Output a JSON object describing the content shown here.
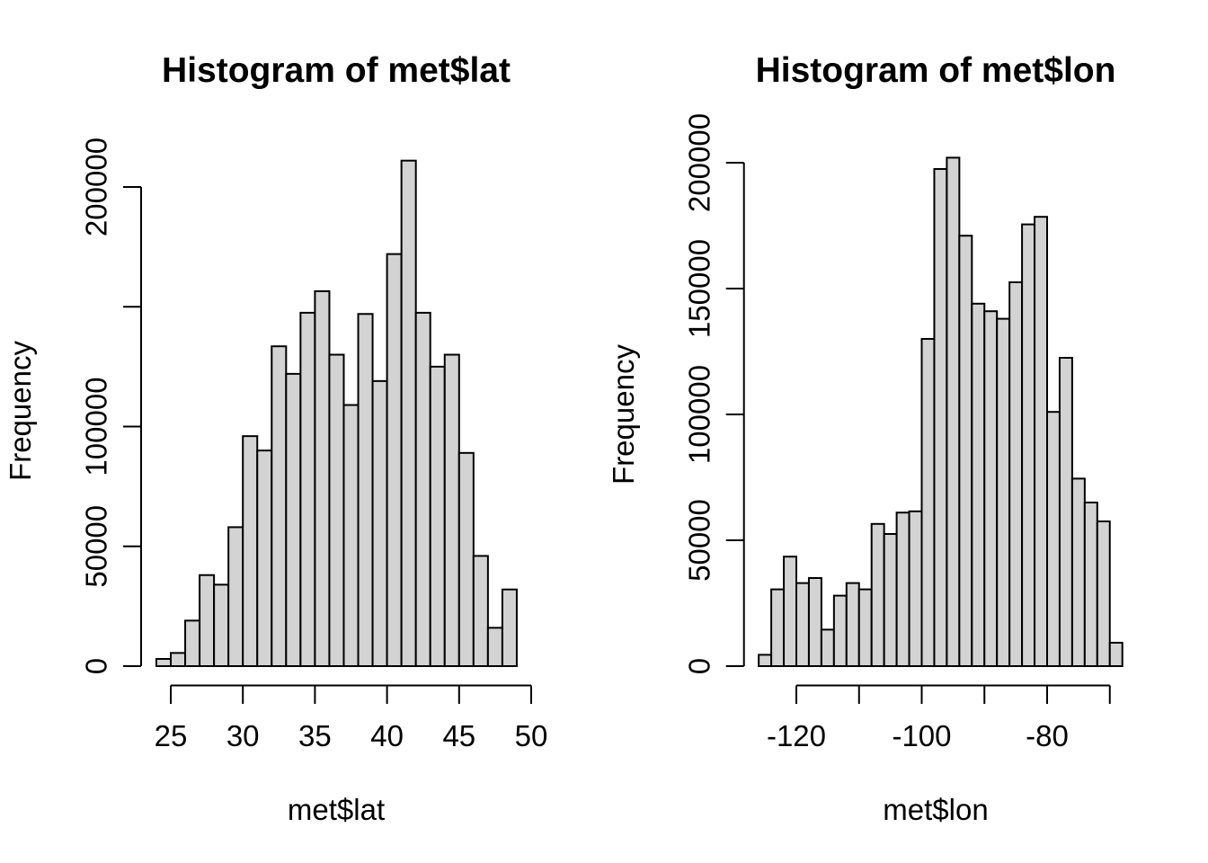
{
  "figure": {
    "background": "#ffffff",
    "bar_fill": "#d3d3d3",
    "bar_stroke": "#000000",
    "text_color": "#000000"
  },
  "chart_data": [
    {
      "type": "bar",
      "title": "Histogram of met$lat",
      "xlabel": "met$lat",
      "ylabel": "Frequency",
      "grid": false,
      "legend": "none",
      "xlim": [
        24,
        50
      ],
      "ylim": [
        0,
        211000
      ],
      "bin_start": 24,
      "bin_width": 1,
      "counts": [
        3000,
        5500,
        19000,
        38000,
        34000,
        58000,
        96000,
        90000,
        133500,
        122000,
        147500,
        156500,
        130000,
        109000,
        147000,
        119000,
        172000,
        211000,
        147500,
        125000,
        130000,
        89000,
        46000,
        16000,
        32000
      ],
      "x_ticks": [
        {
          "value": 25,
          "label": "25"
        },
        {
          "value": 30,
          "label": "30"
        },
        {
          "value": 35,
          "label": "35"
        },
        {
          "value": 40,
          "label": "40"
        },
        {
          "value": 45,
          "label": "45"
        },
        {
          "value": 50,
          "label": "50"
        }
      ],
      "y_ticks": [
        {
          "value": 0,
          "label": "0"
        },
        {
          "value": 50000,
          "label": "50000"
        },
        {
          "value": 100000,
          "label": "100000"
        },
        {
          "value": 150000,
          "label": ""
        },
        {
          "value": 200000,
          "label": "200000"
        }
      ]
    },
    {
      "type": "bar",
      "title": "Histogram of met$lon",
      "xlabel": "met$lon",
      "ylabel": "Frequency",
      "grid": false,
      "legend": "none",
      "xlim": [
        -126,
        -68
      ],
      "ylim": [
        0,
        202000
      ],
      "bin_start": -126,
      "bin_width": 2,
      "counts": [
        4500,
        30500,
        43500,
        33000,
        35000,
        14500,
        28000,
        33000,
        30500,
        56500,
        52500,
        61000,
        61500,
        130000,
        197500,
        202000,
        171000,
        144000,
        141000,
        138000,
        152500,
        175500,
        178500,
        101000,
        122500,
        74500,
        65000,
        57500,
        9300
      ],
      "x_ticks": [
        {
          "value": -120,
          "label": "-120"
        },
        {
          "value": -110,
          "label": ""
        },
        {
          "value": -100,
          "label": "-100"
        },
        {
          "value": -90,
          "label": ""
        },
        {
          "value": -80,
          "label": "-80"
        },
        {
          "value": -70,
          "label": ""
        }
      ],
      "y_ticks": [
        {
          "value": 0,
          "label": "0"
        },
        {
          "value": 50000,
          "label": "50000"
        },
        {
          "value": 100000,
          "label": "100000"
        },
        {
          "value": 150000,
          "label": "150000"
        },
        {
          "value": 200000,
          "label": "200000"
        }
      ]
    }
  ]
}
